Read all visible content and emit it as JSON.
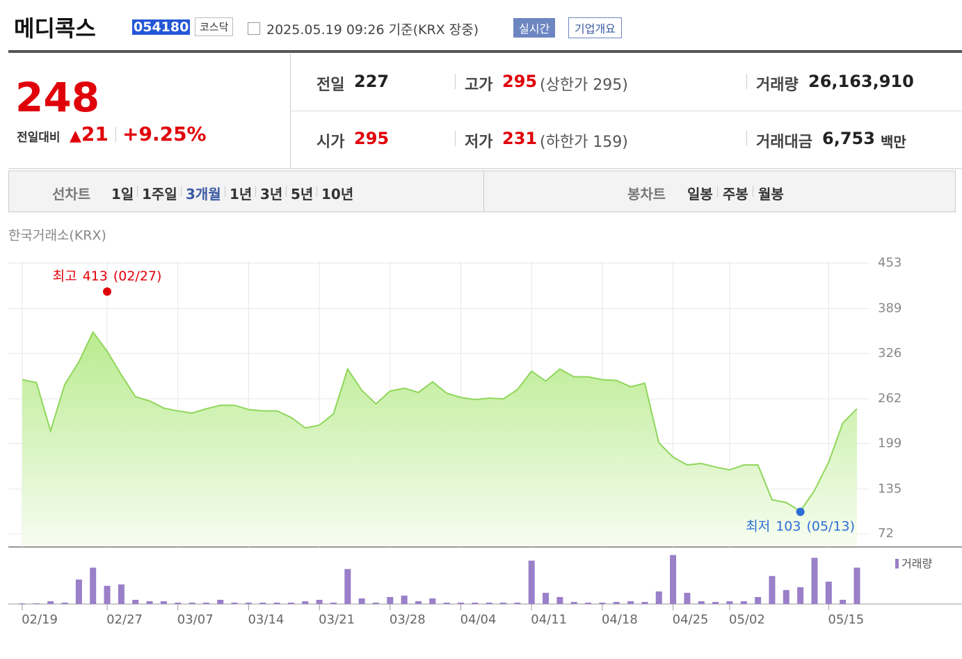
{
  "header": {
    "name": "메디콕스",
    "code": "054180",
    "market": "코스닥",
    "timestamp": "2025.05.19 09:26 기준(KRX 장중)",
    "realtime": "실시간",
    "company": "기업개요"
  },
  "quote": {
    "price": "248",
    "change_label": "전일대비",
    "change": "21",
    "change_pct": "+9.25%",
    "stats": [
      {
        "label": "전일",
        "value": "227"
      },
      {
        "label": "고가",
        "value": "295",
        "note": "(상한가 295)"
      },
      {
        "label": "거래량",
        "value": "26,163,910"
      },
      {
        "label": "시가",
        "value": "295"
      },
      {
        "label": "저가",
        "value": "231",
        "note": "(하한가 159)"
      },
      {
        "label": "거래대금",
        "value": "6,753",
        "unit": "백만"
      }
    ]
  },
  "tabs": {
    "line_label": "선차트",
    "line": [
      "1일",
      "1주일",
      "3개월",
      "1년",
      "3년",
      "5년",
      "10년"
    ],
    "active": "3개월",
    "candle_label": "봉차트",
    "candle": [
      "일봉",
      "주봉",
      "월봉"
    ]
  },
  "chart_data": {
    "type": "line",
    "source": "한국거래소(KRX)",
    "color": "#8fd65a",
    "x": [
      "02/19",
      "02/20",
      "02/21",
      "02/24",
      "02/25",
      "02/26",
      "02/27",
      "02/28",
      "03/04",
      "03/05",
      "03/06",
      "03/07",
      "03/10",
      "03/11",
      "03/12",
      "03/13",
      "03/14",
      "03/17",
      "03/18",
      "03/19",
      "03/20",
      "03/21",
      "03/24",
      "03/25",
      "03/26",
      "03/27",
      "03/28",
      "03/31",
      "04/01",
      "04/02",
      "04/03",
      "04/04",
      "04/07",
      "04/08",
      "04/09",
      "04/10",
      "04/11",
      "04/14",
      "04/15",
      "04/16",
      "04/17",
      "04/18",
      "04/21",
      "04/22",
      "04/23",
      "04/24",
      "04/25",
      "04/28",
      "04/29",
      "04/30",
      "05/02",
      "05/07",
      "05/08",
      "05/09",
      "05/12",
      "05/13",
      "05/14",
      "05/15",
      "05/16",
      "05/19"
    ],
    "values": [
      289,
      285,
      217,
      282,
      314,
      356,
      329,
      296,
      265,
      259,
      249,
      245,
      242,
      248,
      253,
      253,
      247,
      245,
      245,
      236,
      221,
      225,
      241,
      304,
      274,
      255,
      273,
      277,
      271,
      286,
      270,
      264,
      261,
      263,
      262,
      275,
      301,
      287,
      304,
      293,
      293,
      289,
      288,
      279,
      284,
      200,
      180,
      169,
      171,
      166,
      162,
      169,
      169,
      120,
      116,
      104,
      133,
      173,
      228,
      248
    ],
    "ylim": [
      55,
      461
    ],
    "yticks": [
      453,
      389,
      326,
      262,
      199,
      135,
      72
    ],
    "xticks": [
      "02/19",
      "02/27",
      "03/07",
      "03/14",
      "03/21",
      "03/28",
      "04/04",
      "04/11",
      "04/18",
      "04/25",
      "05/02",
      "05/15"
    ],
    "high": {
      "label": "최고",
      "value": 413,
      "date": "(02/27)"
    },
    "low": {
      "label": "최저",
      "value": 103,
      "date": "(05/13)"
    },
    "volume": {
      "name": "거래량",
      "color": "#9a7fc9",
      "ylim": [
        0,
        39000000
      ],
      "values": [
        503000,
        503000,
        2012000,
        1006000,
        17605000,
        26156000,
        13078000,
        14084000,
        3018000,
        2012000,
        2012000,
        1006000,
        1006000,
        1006000,
        3018000,
        1006000,
        1006000,
        1006000,
        1006000,
        1006000,
        2012000,
        3018000,
        1006000,
        25150000,
        4024000,
        1006000,
        5030000,
        6036000,
        2012000,
        4024000,
        1006000,
        1006000,
        1006000,
        1006000,
        1006000,
        1006000,
        31186000,
        8048000,
        5030000,
        1509000,
        1006000,
        1006000,
        1509000,
        2012000,
        1509000,
        9054000,
        35210000,
        8048000,
        2012000,
        1509000,
        2012000,
        2012000,
        5030000,
        20120000,
        10060000,
        12072000,
        33198000,
        16096000,
        3018000,
        26163910
      ]
    }
  }
}
